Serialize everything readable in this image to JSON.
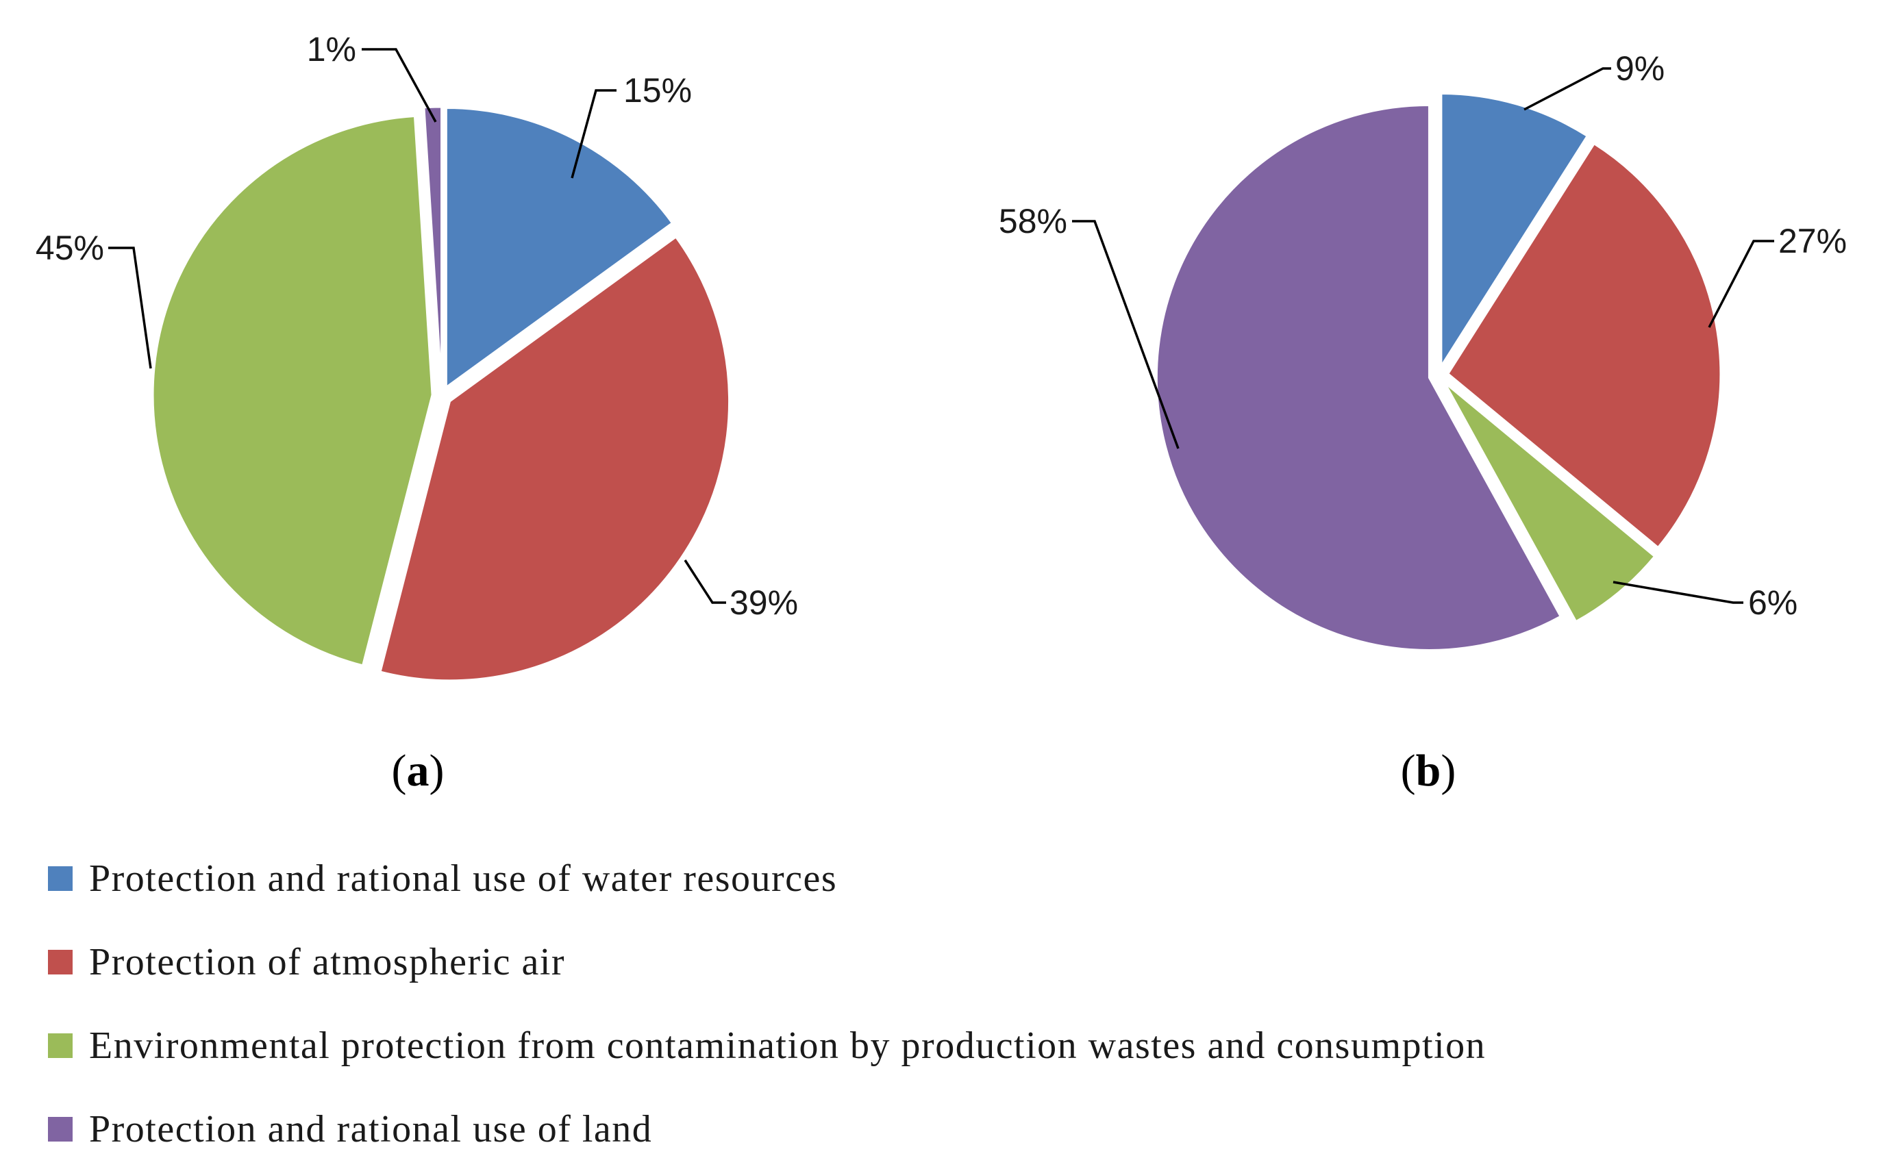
{
  "chart_data": [
    {
      "type": "pie",
      "panel": "a",
      "categories": [
        "Protection and rational use of water resources",
        "Protection of atmospheric air",
        "Environmental protection from contamination by production wastes and consumption",
        "Protection and rational use of land"
      ],
      "values": [
        15,
        39,
        45,
        1
      ],
      "labels": [
        "15%",
        "39%",
        "45%",
        "1%"
      ],
      "caption": [
        "(",
        "a",
        ")"
      ]
    },
    {
      "type": "pie",
      "panel": "b",
      "categories": [
        "Protection and rational use of water resources",
        "Protection of atmospheric air",
        "Environmental protection from contamination by production wastes and consumption",
        "Protection and rational use of land"
      ],
      "values": [
        9,
        27,
        6,
        58
      ],
      "labels": [
        "9%",
        "27%",
        "6%",
        "58%"
      ],
      "caption": [
        "(",
        "b",
        ")"
      ]
    }
  ],
  "legend": [
    {
      "label": "Protection and rational use of water resources",
      "color": "#4f81bd"
    },
    {
      "label": "Protection of atmospheric air",
      "color": "#c0504d"
    },
    {
      "label": "Environmental protection from contamination by production wastes and consumption",
      "color": "#9bbb59"
    },
    {
      "label": "Protection and rational use of land",
      "color": "#8064a2"
    }
  ]
}
